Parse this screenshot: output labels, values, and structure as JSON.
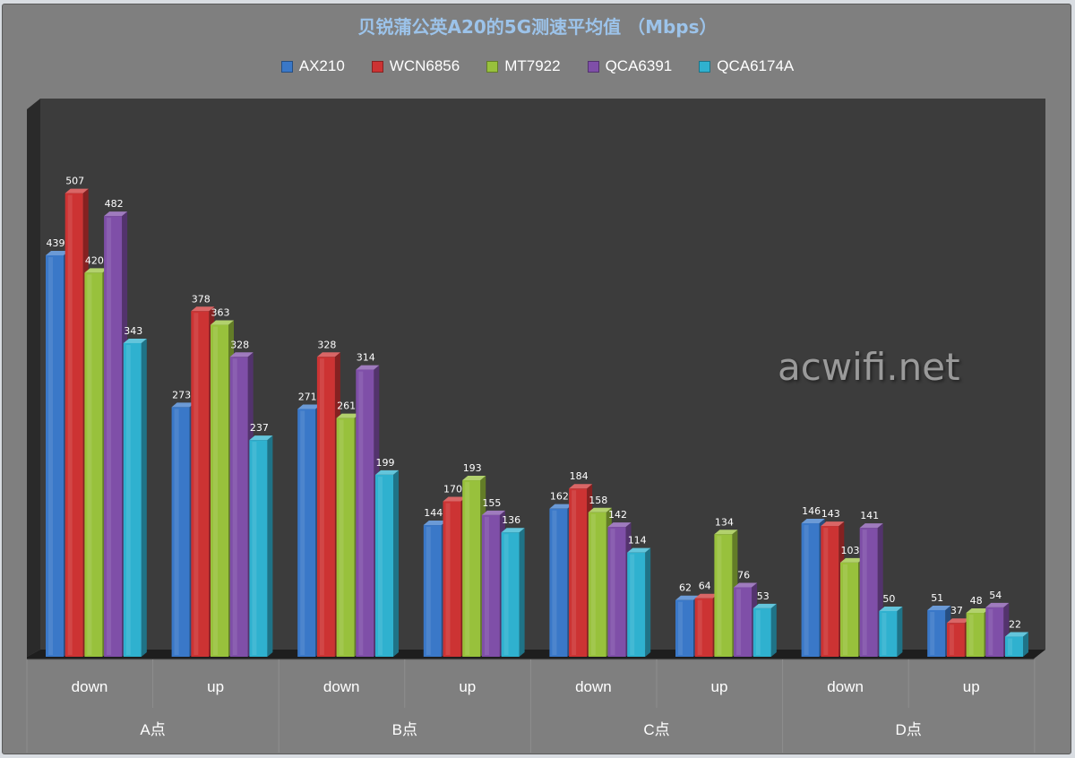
{
  "chart_data": {
    "type": "bar",
    "title": "贝锐蒲公英A20的5G测速平均值 （Mbps）",
    "groups": [
      "A点",
      "B点",
      "C点",
      "D点"
    ],
    "categories": [
      "down",
      "up",
      "down",
      "up",
      "down",
      "up",
      "down",
      "up"
    ],
    "series": [
      {
        "name": "AX210",
        "color": "#3a78c8",
        "values": [
          439,
          273,
          271,
          144,
          162,
          62,
          146,
          51
        ]
      },
      {
        "name": "WCN6856",
        "color": "#cc3333",
        "values": [
          507,
          378,
          328,
          170,
          184,
          64,
          143,
          37
        ]
      },
      {
        "name": "MT7922",
        "color": "#98c13c",
        "values": [
          420,
          363,
          261,
          193,
          158,
          134,
          103,
          48
        ]
      },
      {
        "name": "QCA6391",
        "color": "#7f4fa8",
        "values": [
          482,
          328,
          314,
          155,
          142,
          76,
          141,
          54
        ]
      },
      {
        "name": "QCA6174A",
        "color": "#2fb1cf",
        "values": [
          343,
          237,
          199,
          136,
          114,
          53,
          50,
          22
        ]
      }
    ],
    "ylim": [
      0,
      550
    ],
    "grid": false,
    "legend_position": "top",
    "three_d": true
  },
  "watermark": "acwifi.net"
}
